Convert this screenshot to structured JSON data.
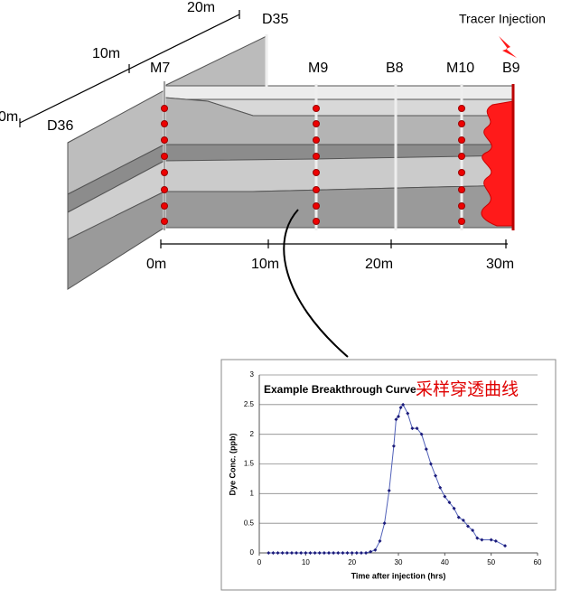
{
  "diagram": {
    "scale_top": [
      "0m",
      "10m",
      "20m"
    ],
    "wells": [
      "D36",
      "M7",
      "D35",
      "M9",
      "B8",
      "M10",
      "B9"
    ],
    "injection": "Tracer Injection",
    "scale_bottom": [
      "0m",
      "10m",
      "20m",
      "30m"
    ]
  },
  "chart_data": {
    "type": "line",
    "title": "Example Breakthrough Curve",
    "subtitle": "采样穿透曲线",
    "x_label": "Time after injection (hrs)",
    "y_label": "Dye Conc. (ppb)",
    "x": [
      2,
      3,
      4,
      5,
      6,
      7,
      8,
      9,
      10,
      11,
      12,
      13,
      14,
      15,
      16,
      17,
      18,
      19,
      20,
      21,
      22,
      23,
      24,
      25,
      26,
      27,
      28,
      29,
      29.5,
      30,
      30.5,
      31,
      32,
      33,
      34,
      35,
      36,
      37,
      38,
      39,
      40,
      41,
      42,
      43,
      44,
      45,
      46,
      47,
      48,
      50,
      51,
      53
    ],
    "series": [
      {
        "name": "Dye",
        "color": "#1a1a7a",
        "values": [
          0,
          0,
          0,
          0,
          0,
          0,
          0,
          0,
          0,
          0,
          0,
          0,
          0,
          0,
          0,
          0,
          0,
          0,
          0,
          0,
          0,
          0,
          0.02,
          0.05,
          0.2,
          0.5,
          1.05,
          1.8,
          2.25,
          2.3,
          2.45,
          2.5,
          2.35,
          2.1,
          2.1,
          2.0,
          1.75,
          1.5,
          1.3,
          1.1,
          0.95,
          0.85,
          0.75,
          0.6,
          0.55,
          0.45,
          0.38,
          0.25,
          0.22,
          0.22,
          0.2,
          0.12
        ]
      }
    ],
    "xlim": [
      0,
      60
    ],
    "xticks": [
      0,
      10,
      20,
      30,
      40,
      50,
      60
    ],
    "ylim": [
      0,
      3
    ],
    "yticks": [
      0,
      0.5,
      1,
      1.5,
      2,
      2.5,
      3
    ],
    "grid": true
  }
}
